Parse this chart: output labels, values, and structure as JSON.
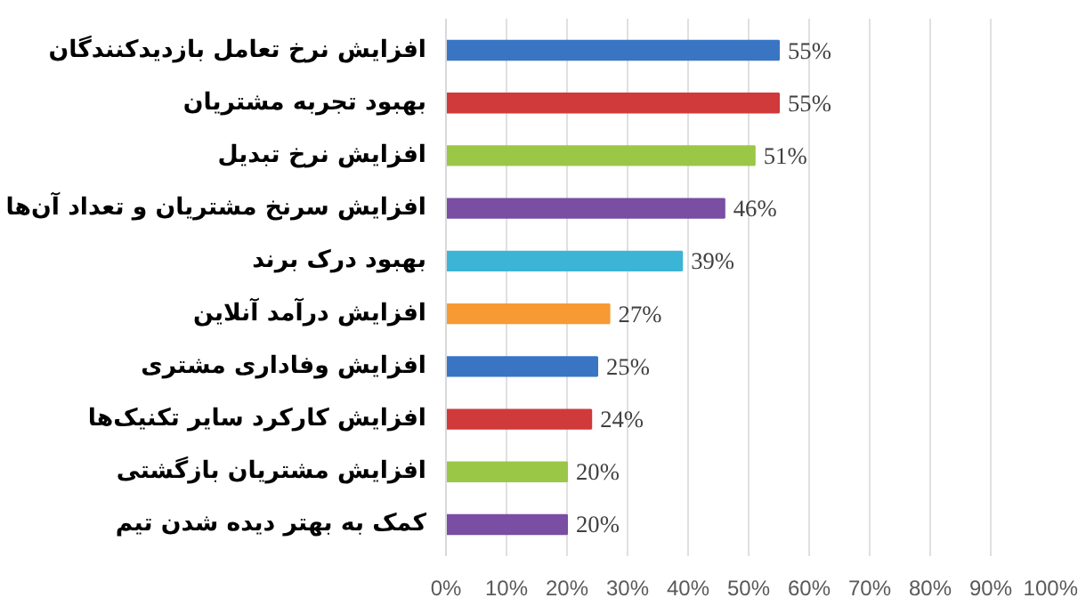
{
  "chart_data": {
    "type": "bar",
    "orientation": "horizontal",
    "categories": [
      "افزایش نرخ تعامل بازدیدکنندگان",
      "بهبود تجربه مشتریان",
      "افزایش نرخ تبدیل",
      "افزایش سرنخ مشتریان و تعداد آن‌ها",
      "بهبود درک برند",
      "افزایش درآمد آنلاین",
      "افزایش وفاداری مشتری",
      "افزایش کارکرد سایر تکنیک‌ها",
      "افزایش مشتریان بازگشتی",
      "کمک به بهتر دیده شدن تیم"
    ],
    "values": [
      55,
      55,
      51,
      46,
      39,
      27,
      25,
      24,
      20,
      20
    ],
    "colors": [
      "#3a75c4",
      "#d03a3a",
      "#9bc746",
      "#7a4ea3",
      "#3cb4d6",
      "#f79a34",
      "#3a75c4",
      "#d03a3a",
      "#9bc746",
      "#7a4ea3"
    ],
    "value_labels": [
      "55%",
      "55%",
      "51%",
      "46%",
      "39%",
      "27%",
      "25%",
      "24%",
      "20%",
      "20%"
    ],
    "xlim": [
      0,
      100
    ],
    "xticks": [
      {
        "value": 0,
        "label": "0%"
      },
      {
        "value": 10,
        "label": "10%"
      },
      {
        "value": 20,
        "label": "20%"
      },
      {
        "value": 30,
        "label": "30%"
      },
      {
        "value": 40,
        "label": "40%"
      },
      {
        "value": 50,
        "label": "50%"
      },
      {
        "value": 60,
        "label": "60%"
      },
      {
        "value": 70,
        "label": "70%"
      },
      {
        "value": 80,
        "label": "80%"
      },
      {
        "value": 90,
        "label": "90%"
      },
      {
        "value": 100,
        "label": "100%"
      }
    ],
    "grid": "x"
  }
}
